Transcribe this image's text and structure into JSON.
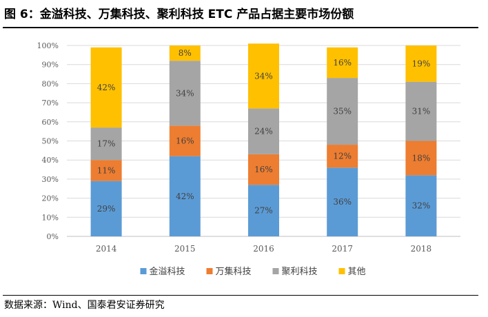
{
  "title": "图 6：金溢科技、万集科技、聚利科技 ETC 产品占据主要市场份额",
  "source": "数据来源：Wind、国泰君安证券研究",
  "chart_data": {
    "type": "bar",
    "stacked": true,
    "categories": [
      "2014",
      "2015",
      "2016",
      "2017",
      "2018"
    ],
    "series": [
      {
        "name": "金溢科技",
        "color": "#5B9BD5",
        "values": [
          29,
          42,
          27,
          36,
          32
        ],
        "labels": [
          "29%",
          "42%",
          "27%",
          "36%",
          "32%"
        ]
      },
      {
        "name": "万集科技",
        "color": "#ED7D31",
        "values": [
          11,
          16,
          16,
          12,
          18
        ],
        "labels": [
          "11%",
          "16%",
          "16%",
          "12%",
          "18%"
        ]
      },
      {
        "name": "聚利科技",
        "color": "#A5A5A5",
        "values": [
          17,
          34,
          24,
          35,
          31
        ],
        "labels": [
          "17%",
          "34%",
          "24%",
          "35%",
          "31%"
        ]
      },
      {
        "name": "其他",
        "color": "#FFC000",
        "values": [
          42,
          8,
          34,
          16,
          19
        ],
        "labels": [
          "42%",
          "8%",
          "34%",
          "16%",
          "19%"
        ]
      }
    ],
    "ylim": [
      0,
      100
    ],
    "yticks": [
      "0%",
      "10%",
      "20%",
      "30%",
      "40%",
      "50%",
      "60%",
      "70%",
      "80%",
      "90%",
      "100%"
    ],
    "grid": true,
    "legend": "bottom"
  }
}
